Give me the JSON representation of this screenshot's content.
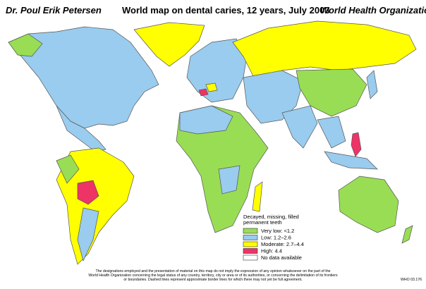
{
  "header": {
    "author": "Dr. Poul Erik Petersen",
    "title": "World map on dental caries, 12 years, July 2003",
    "organization": "World Health Organization"
  },
  "legend": {
    "title_lines": [
      "Decayed, missing, filled",
      "permanent teeth"
    ],
    "items": [
      {
        "label": "Very low: <1.2",
        "color": "#99dd55"
      },
      {
        "label": "Low: 1.2–2.6",
        "color": "#99ccee"
      },
      {
        "label": "Moderate: 2.7–4.4",
        "color": "#ffff00"
      },
      {
        "label": "High: 4.4",
        "color": "#ee3366"
      },
      {
        "label": "No data available",
        "color": "#ffffff"
      }
    ]
  },
  "footer": {
    "lines": [
      "The designations employed and the presentation of material on this map do not imply the expression of any opinion whatsoever on the part of the",
      "World Health Organization concerning the legal status of any country, territory, city or area or of its authorities, or concerning the delimitation of its frontiers",
      "or boundaries. Dashed lines represent approximate border lines for which there may not yet be full agreement."
    ],
    "code": "WHO 03.176"
  }
}
